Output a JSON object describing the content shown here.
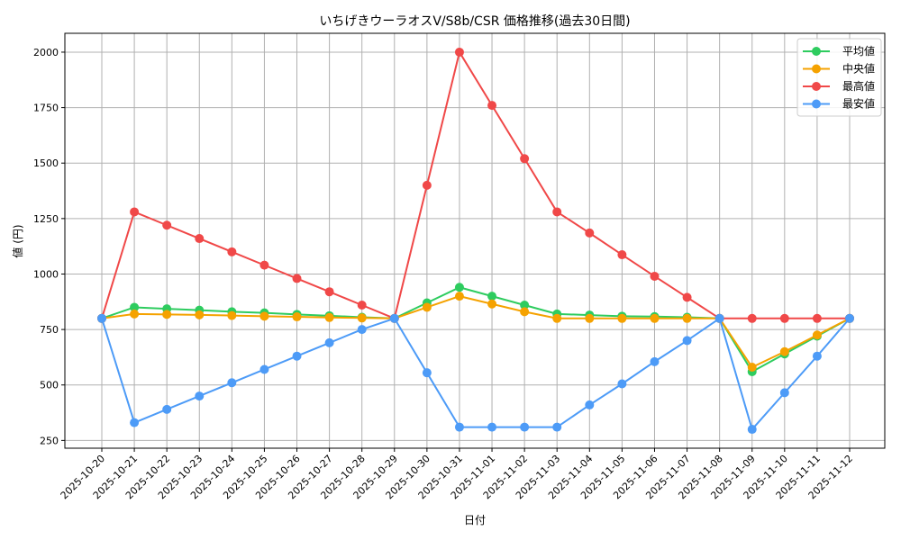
{
  "chart_data": {
    "type": "line",
    "title": "いちげきウーラオスV/S8b/CSR 価格推移(過去30日間)",
    "xlabel": "日付",
    "ylabel": "値 (円)",
    "ylim": [
      215,
      2085
    ],
    "yticks": [
      250,
      500,
      750,
      1000,
      1250,
      1500,
      1750,
      2000
    ],
    "grid": true,
    "legend_position": "upper right",
    "categories": [
      "2025-10-20",
      "2025-10-21",
      "2025-10-22",
      "2025-10-23",
      "2025-10-24",
      "2025-10-25",
      "2025-10-26",
      "2025-10-27",
      "2025-10-28",
      "2025-10-29",
      "2025-10-30",
      "2025-10-31",
      "2025-11-01",
      "2025-11-02",
      "2025-11-03",
      "2025-11-04",
      "2025-11-05",
      "2025-11-06",
      "2025-11-07",
      "2025-11-08",
      "2025-11-09",
      "2025-11-10",
      "2025-11-11",
      "2025-11-12"
    ],
    "series": [
      {
        "name": "平均値",
        "color": "#2ecc5f",
        "values": [
          800,
          850,
          843,
          837,
          830,
          825,
          818,
          812,
          805,
          800,
          870,
          940,
          900,
          860,
          820,
          815,
          810,
          808,
          805,
          800,
          560,
          640,
          720,
          800
        ]
      },
      {
        "name": "中央値",
        "color": "#f5a200",
        "values": [
          800,
          820,
          818,
          816,
          813,
          810,
          807,
          804,
          802,
          800,
          850,
          900,
          865,
          830,
          800,
          800,
          800,
          800,
          800,
          800,
          580,
          650,
          725,
          800
        ]
      },
      {
        "name": "最高値",
        "color": "#f04848",
        "values": [
          800,
          1280,
          1220,
          1160,
          1100,
          1040,
          980,
          920,
          860,
          800,
          1400,
          2000,
          1760,
          1520,
          1280,
          1185,
          1087,
          990,
          895,
          800,
          800,
          800,
          800,
          800
        ]
      },
      {
        "name": "最安値",
        "color": "#4d9bf7",
        "values": [
          800,
          330,
          390,
          450,
          510,
          570,
          630,
          690,
          750,
          800,
          555,
          310,
          310,
          310,
          310,
          410,
          505,
          605,
          700,
          800,
          300,
          465,
          630,
          800
        ]
      }
    ]
  }
}
